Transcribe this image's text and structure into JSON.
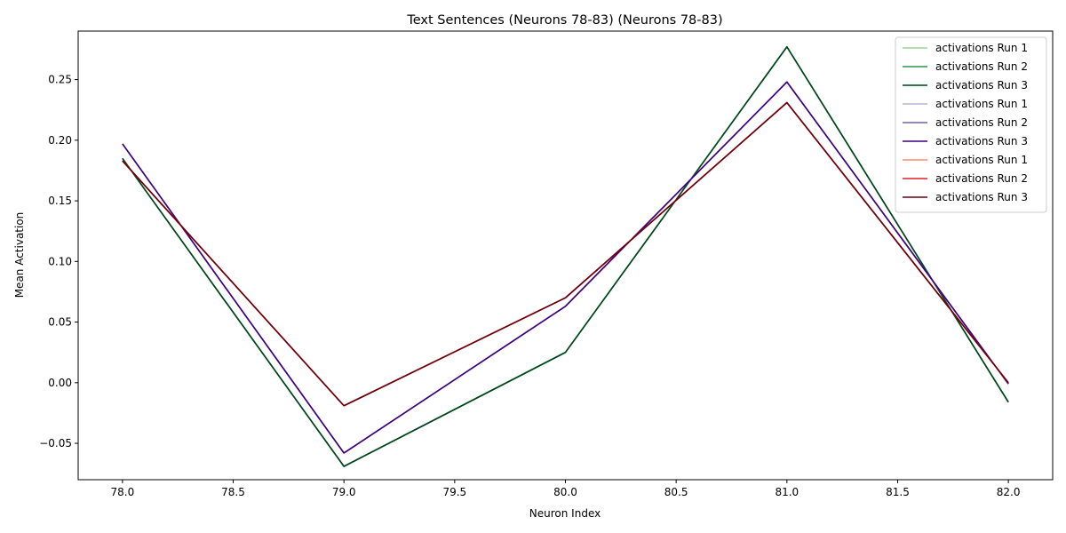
{
  "chart_data": {
    "type": "line",
    "title": "Text Sentences (Neurons 78-83) (Neurons 78-83)",
    "xlabel": "Neuron Index",
    "ylabel": "Mean Activation",
    "xlim": [
      77.8,
      82.2
    ],
    "ylim": [
      -0.08,
      0.29
    ],
    "xticks": [
      78.0,
      78.5,
      79.0,
      79.5,
      80.0,
      80.5,
      81.0,
      81.5,
      82.0
    ],
    "xtick_labels": [
      "78.0",
      "78.5",
      "79.0",
      "79.5",
      "80.0",
      "80.5",
      "81.0",
      "81.5",
      "82.0"
    ],
    "yticks": [
      -0.05,
      0.0,
      0.05,
      0.1,
      0.15,
      0.2,
      0.25
    ],
    "ytick_labels": [
      "−0.05",
      "0.00",
      "0.05",
      "0.10",
      "0.15",
      "0.20",
      "0.25"
    ],
    "grid": false,
    "legend_position": "top-right",
    "x": [
      78,
      79,
      80,
      81,
      82
    ],
    "series": [
      {
        "name": "activations Run 1",
        "color": "#98d594",
        "values": [
          0.185,
          -0.069,
          0.025,
          0.277,
          -0.016
        ]
      },
      {
        "name": "activations Run 2",
        "color": "#2e964d",
        "values": [
          0.185,
          -0.069,
          0.025,
          0.277,
          -0.016
        ]
      },
      {
        "name": "activations Run 3",
        "color": "#00441b",
        "values": [
          0.185,
          -0.069,
          0.025,
          0.277,
          -0.016
        ]
      },
      {
        "name": "activations Run 1",
        "color": "#b7b4d9",
        "values": [
          0.197,
          -0.058,
          0.063,
          0.248,
          -0.001
        ]
      },
      {
        "name": "activations Run 2",
        "color": "#7261ab",
        "values": [
          0.197,
          -0.058,
          0.063,
          0.248,
          -0.001
        ]
      },
      {
        "name": "activations Run 3",
        "color": "#3f007d",
        "values": [
          0.197,
          -0.058,
          0.063,
          0.248,
          -0.001
        ]
      },
      {
        "name": "activations Run 1",
        "color": "#fc8a6a",
        "values": [
          0.183,
          -0.019,
          0.07,
          0.231,
          0.0
        ]
      },
      {
        "name": "activations Run 2",
        "color": "#d92523",
        "values": [
          0.183,
          -0.019,
          0.07,
          0.231,
          0.0
        ]
      },
      {
        "name": "activations Run 3",
        "color": "#67000d",
        "values": [
          0.183,
          -0.019,
          0.07,
          0.231,
          0.0
        ]
      }
    ]
  }
}
